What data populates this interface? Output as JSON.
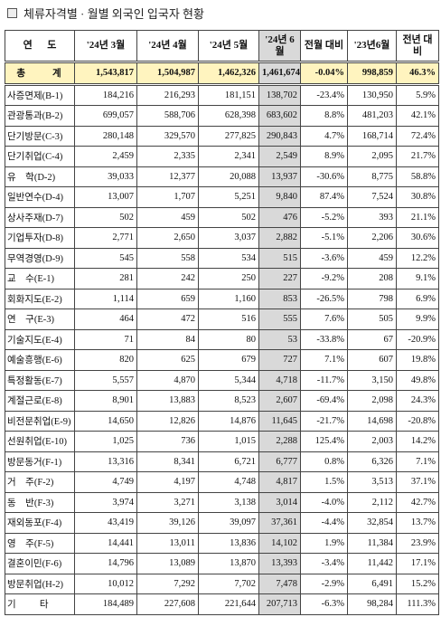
{
  "header": {
    "title": "체류자격별 · 월별 외국인 입국자 현황"
  },
  "table": {
    "columns": [
      "연      도",
      "'24년 3월",
      "'24년 4월",
      "'24년 5월",
      "'24년 6월",
      "전월 대비",
      "'23년6월",
      "전년 대비"
    ],
    "rows": [
      [
        "총        계",
        "1,543,817",
        "1,504,987",
        "1,462,326",
        "1,461,674",
        "-0.04%",
        "998,859",
        "46.3%"
      ],
      [
        "사증면제(B-1)",
        "184,216",
        "216,293",
        "181,151",
        "138,702",
        "-23.4%",
        "130,950",
        "5.9%"
      ],
      [
        "관광통과(B-2)",
        "699,057",
        "588,706",
        "628,398",
        "683,602",
        "8.8%",
        "481,203",
        "42.1%"
      ],
      [
        "단기방문(C-3)",
        "280,148",
        "329,570",
        "277,825",
        "290,843",
        "4.7%",
        "168,714",
        "72.4%"
      ],
      [
        "단기취업(C-4)",
        "2,459",
        "2,335",
        "2,341",
        "2,549",
        "8.9%",
        "2,095",
        "21.7%"
      ],
      [
        "유    학(D-2)",
        "39,033",
        "12,377",
        "20,088",
        "13,937",
        "-30.6%",
        "8,775",
        "58.8%"
      ],
      [
        "일반연수(D-4)",
        "13,007",
        "1,707",
        "5,251",
        "9,840",
        "87.4%",
        "7,524",
        "30.8%"
      ],
      [
        "상사주재(D-7)",
        "502",
        "459",
        "502",
        "476",
        "-5.2%",
        "393",
        "21.1%"
      ],
      [
        "기업투자(D-8)",
        "2,771",
        "2,650",
        "3,037",
        "2,882",
        "-5.1%",
        "2,206",
        "30.6%"
      ],
      [
        "무역경영(D-9)",
        "545",
        "558",
        "534",
        "515",
        "-3.6%",
        "459",
        "12.2%"
      ],
      [
        "교    수(E-1)",
        "281",
        "242",
        "250",
        "227",
        "-9.2%",
        "208",
        "9.1%"
      ],
      [
        "회화지도(E-2)",
        "1,114",
        "659",
        "1,160",
        "853",
        "-26.5%",
        "798",
        "6.9%"
      ],
      [
        "연    구(E-3)",
        "464",
        "472",
        "516",
        "555",
        "7.6%",
        "505",
        "9.9%"
      ],
      [
        "기술지도(E-4)",
        "71",
        "84",
        "80",
        "53",
        "-33.8%",
        "67",
        "-20.9%"
      ],
      [
        "예술흥행(E-6)",
        "820",
        "625",
        "679",
        "727",
        "7.1%",
        "607",
        "19.8%"
      ],
      [
        "특정활동(E-7)",
        "5,557",
        "4,870",
        "5,344",
        "4,718",
        "-11.7%",
        "3,150",
        "49.8%"
      ],
      [
        "계절근로(E-8)",
        "8,901",
        "13,883",
        "8,523",
        "2,607",
        "-69.4%",
        "2,098",
        "24.3%"
      ],
      [
        "비전문취업(E-9)",
        "14,650",
        "12,826",
        "14,876",
        "11,645",
        "-21.7%",
        "14,698",
        "-20.8%"
      ],
      [
        "선원취업(E-10)",
        "1,025",
        "736",
        "1,015",
        "2,288",
        "125.4%",
        "2,003",
        "14.2%"
      ],
      [
        "방문동거(F-1)",
        "13,316",
        "8,341",
        "6,721",
        "6,777",
        "0.8%",
        "6,326",
        "7.1%"
      ],
      [
        "거    주(F-2)",
        "4,749",
        "4,197",
        "4,748",
        "4,817",
        "1.5%",
        "3,513",
        "37.1%"
      ],
      [
        "동    반(F-3)",
        "3,974",
        "3,271",
        "3,138",
        "3,014",
        "-4.0%",
        "2,112",
        "42.7%"
      ],
      [
        "재외동포(F-4)",
        "43,419",
        "39,126",
        "39,097",
        "37,361",
        "-4.4%",
        "32,854",
        "13.7%"
      ],
      [
        "영    주(F-5)",
        "14,441",
        "13,011",
        "13,836",
        "14,102",
        "1.9%",
        "11,384",
        "23.9%"
      ],
      [
        "결혼이민(F-6)",
        "14,796",
        "13,089",
        "13,870",
        "13,393",
        "-3.4%",
        "11,442",
        "17.1%"
      ],
      [
        "방문취업(H-2)",
        "10,012",
        "7,292",
        "7,702",
        "7,478",
        "-2.9%",
        "6,491",
        "15.2%"
      ],
      [
        "기          타",
        "184,489",
        "227,608",
        "221,644",
        "207,713",
        "-6.3%",
        "98,284",
        "111.3%"
      ]
    ]
  }
}
